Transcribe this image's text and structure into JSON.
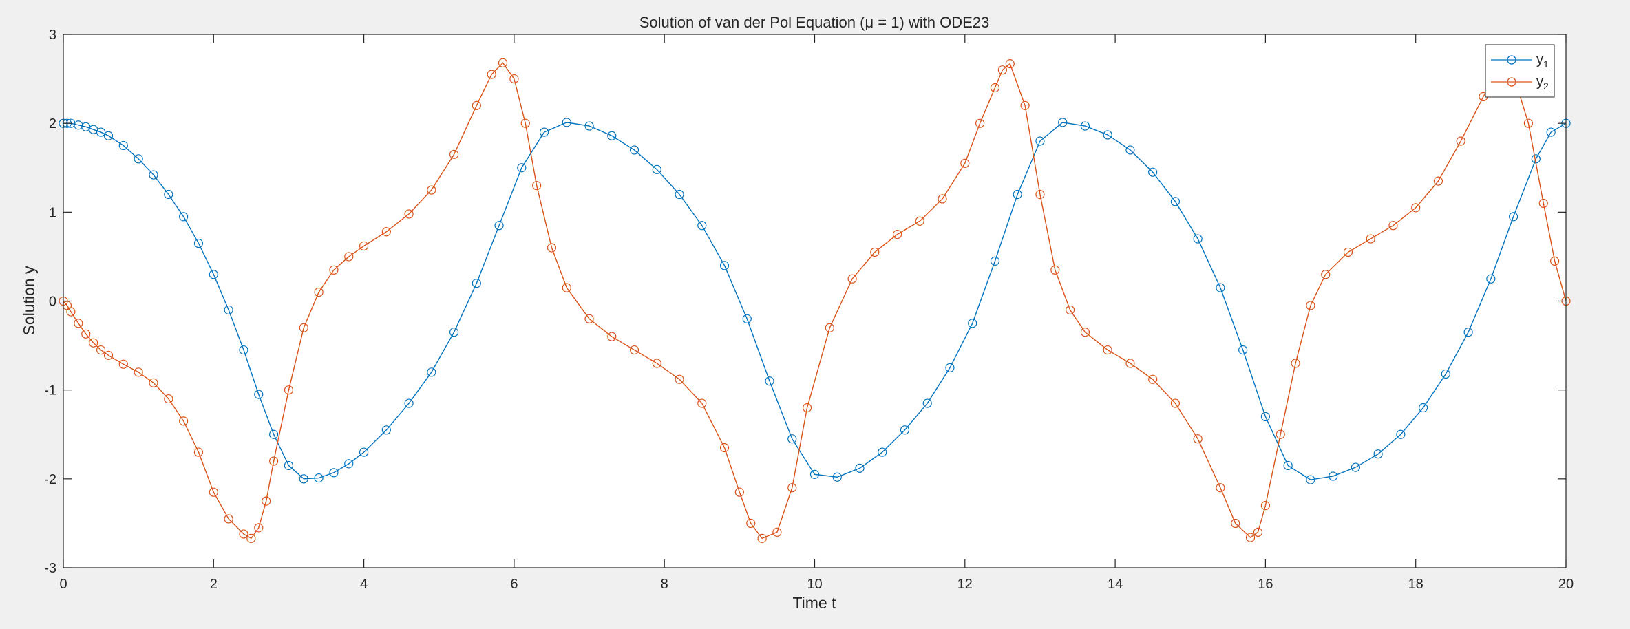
{
  "chart_data": {
    "type": "line",
    "title": "Solution of van der Pol Equation (μ = 1) with ODE23",
    "xlabel": "Time t",
    "ylabel": "Solution y",
    "xlim": [
      0,
      20
    ],
    "ylim": [
      -3,
      3
    ],
    "xticks": [
      0,
      2,
      4,
      6,
      8,
      10,
      12,
      14,
      16,
      18,
      20
    ],
    "yticks": [
      -3,
      -2,
      -1,
      0,
      1,
      2,
      3
    ],
    "grid": false,
    "legend_position": "top-right",
    "marker": "circle",
    "series": [
      {
        "name": "y_1",
        "legend_main": "y",
        "legend_sub": "1",
        "color": "#0072BD",
        "x": [
          0,
          0.05,
          0.1,
          0.2,
          0.3,
          0.4,
          0.5,
          0.6,
          0.8,
          1.0,
          1.2,
          1.4,
          1.6,
          1.8,
          2.0,
          2.2,
          2.4,
          2.6,
          2.8,
          3.0,
          3.2,
          3.4,
          3.6,
          3.8,
          4.0,
          4.3,
          4.6,
          4.9,
          5.2,
          5.5,
          5.8,
          6.1,
          6.4,
          6.7,
          7.0,
          7.3,
          7.6,
          7.9,
          8.2,
          8.5,
          8.8,
          9.1,
          9.4,
          9.7,
          10.0,
          10.3,
          10.6,
          10.9,
          11.2,
          11.5,
          11.8,
          12.1,
          12.4,
          12.7,
          13.0,
          13.3,
          13.6,
          13.9,
          14.2,
          14.5,
          14.8,
          15.1,
          15.4,
          15.7,
          16.0,
          16.3,
          16.6,
          16.9,
          17.2,
          17.5,
          17.8,
          18.1,
          18.4,
          18.7,
          19.0,
          19.3,
          19.6,
          19.8,
          20.0
        ],
        "y": [
          2.0,
          2.0,
          2.0,
          1.98,
          1.96,
          1.93,
          1.9,
          1.86,
          1.75,
          1.6,
          1.42,
          1.2,
          0.95,
          0.65,
          0.3,
          -0.1,
          -0.55,
          -1.05,
          -1.5,
          -1.85,
          -2.0,
          -1.99,
          -1.93,
          -1.83,
          -1.7,
          -1.45,
          -1.15,
          -0.8,
          -0.35,
          0.2,
          0.85,
          1.5,
          1.9,
          2.01,
          1.97,
          1.86,
          1.7,
          1.48,
          1.2,
          0.85,
          0.4,
          -0.2,
          -0.9,
          -1.55,
          -1.95,
          -1.98,
          -1.88,
          -1.7,
          -1.45,
          -1.15,
          -0.75,
          -0.25,
          0.45,
          1.2,
          1.8,
          2.01,
          1.97,
          1.87,
          1.7,
          1.45,
          1.12,
          0.7,
          0.15,
          -0.55,
          -1.3,
          -1.85,
          -2.01,
          -1.97,
          -1.87,
          -1.72,
          -1.5,
          -1.2,
          -0.82,
          -0.35,
          0.25,
          0.95,
          1.6,
          1.9,
          2.0
        ]
      },
      {
        "name": "y_2",
        "legend_main": "y",
        "legend_sub": "2",
        "color": "#D95319",
        "x": [
          0,
          0.05,
          0.1,
          0.2,
          0.3,
          0.4,
          0.5,
          0.6,
          0.8,
          1.0,
          1.2,
          1.4,
          1.6,
          1.8,
          2.0,
          2.2,
          2.4,
          2.5,
          2.6,
          2.7,
          2.8,
          3.0,
          3.2,
          3.4,
          3.6,
          3.8,
          4.0,
          4.3,
          4.6,
          4.9,
          5.2,
          5.5,
          5.7,
          5.85,
          6.0,
          6.15,
          6.3,
          6.5,
          6.7,
          7.0,
          7.3,
          7.6,
          7.9,
          8.2,
          8.5,
          8.8,
          9.0,
          9.15,
          9.3,
          9.5,
          9.7,
          9.9,
          10.2,
          10.5,
          10.8,
          11.1,
          11.4,
          11.7,
          12.0,
          12.2,
          12.4,
          12.5,
          12.6,
          12.8,
          13.0,
          13.2,
          13.4,
          13.6,
          13.9,
          14.2,
          14.5,
          14.8,
          15.1,
          15.4,
          15.6,
          15.8,
          15.9,
          16.0,
          16.2,
          16.4,
          16.6,
          16.8,
          17.1,
          17.4,
          17.7,
          18.0,
          18.3,
          18.6,
          18.9,
          19.1,
          19.3,
          19.5,
          19.7,
          19.85,
          20.0
        ],
        "y": [
          0.0,
          -0.05,
          -0.12,
          -0.25,
          -0.37,
          -0.47,
          -0.55,
          -0.61,
          -0.71,
          -0.8,
          -0.92,
          -1.1,
          -1.35,
          -1.7,
          -2.15,
          -2.45,
          -2.62,
          -2.67,
          -2.55,
          -2.25,
          -1.8,
          -1.0,
          -0.3,
          0.1,
          0.35,
          0.5,
          0.62,
          0.78,
          0.98,
          1.25,
          1.65,
          2.2,
          2.55,
          2.68,
          2.5,
          2.0,
          1.3,
          0.6,
          0.15,
          -0.2,
          -0.4,
          -0.55,
          -0.7,
          -0.88,
          -1.15,
          -1.65,
          -2.15,
          -2.5,
          -2.67,
          -2.6,
          -2.1,
          -1.2,
          -0.3,
          0.25,
          0.55,
          0.75,
          0.9,
          1.15,
          1.55,
          2.0,
          2.4,
          2.6,
          2.67,
          2.2,
          1.2,
          0.35,
          -0.1,
          -0.35,
          -0.55,
          -0.7,
          -0.88,
          -1.15,
          -1.55,
          -2.1,
          -2.5,
          -2.66,
          -2.6,
          -2.3,
          -1.5,
          -0.7,
          -0.05,
          0.3,
          0.55,
          0.7,
          0.85,
          1.05,
          1.35,
          1.8,
          2.3,
          2.6,
          2.55,
          2.0,
          1.1,
          0.45,
          0.0
        ]
      }
    ]
  }
}
